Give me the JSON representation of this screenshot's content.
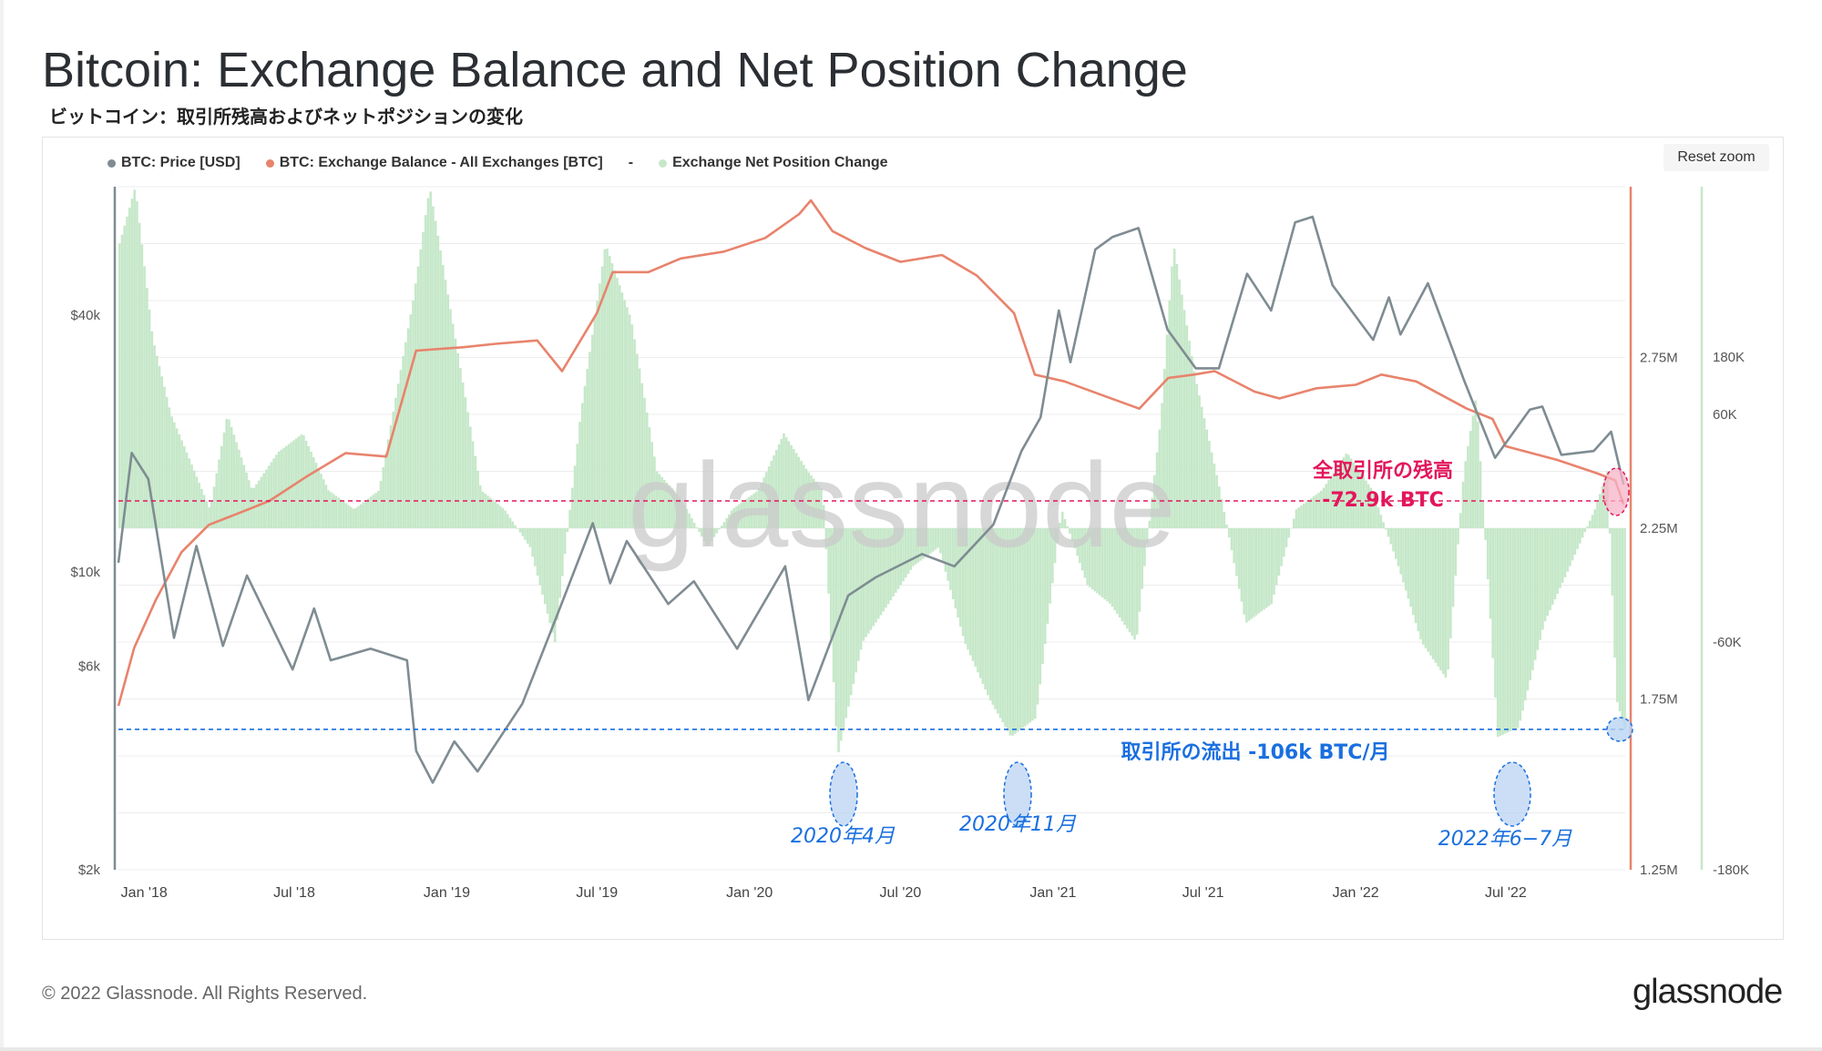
{
  "header": {
    "title": "Bitcoin: Exchange Balance and Net Position Change",
    "subtitle": "ビットコイン：取引所残高およびネットポジションの変化"
  },
  "toolbar": {
    "reset_zoom_label": "Reset zoom"
  },
  "legend": {
    "items": [
      {
        "label": "BTC: Price [USD]",
        "color": "#7f8c92"
      },
      {
        "label": "BTC: Exchange Balance - All Exchanges [BTC]",
        "color": "#e8836c"
      },
      {
        "label": "-",
        "color": ""
      },
      {
        "label": "Exchange Net Position Change",
        "color": "#c6e8c9"
      }
    ]
  },
  "watermark": "glassnode",
  "annotations": {
    "balance_title": "全取引所の残高",
    "balance_value": "-72.9k BTC",
    "outflow_label": "取引所の流出 -106k BTC/月",
    "event_1": "2020年4月",
    "event_2": "2020年11月",
    "event_3": "2022年6−7月"
  },
  "footer": {
    "copyright": "© 2022 Glassnode. All Rights Reserved.",
    "logo": "glassnode"
  },
  "colors": {
    "price": "#7f8c92",
    "balance": "#e8836c",
    "netpos": "#c6e8c9",
    "pink": "#e3165b",
    "blue": "#1a6fe0"
  },
  "chart_data": {
    "type": "line",
    "x_ticks": [
      "Jan '18",
      "Jul '18",
      "Jan '19",
      "Jul '19",
      "Jan '20",
      "Jul '20",
      "Jan '21",
      "Jul '21",
      "Jan '22",
      "Jul '22"
    ],
    "y_left_ticks": [
      "$40k",
      "$10k",
      "$6k",
      "$2k"
    ],
    "y_right1_ticks": [
      "2.75M",
      "2.25M",
      "1.75M",
      "1.25M"
    ],
    "y_right2_ticks": [
      "180K",
      "60K",
      "-60K",
      "-180K"
    ],
    "y_left_scale": "log",
    "y_left_range": [
      2000,
      80000
    ],
    "y_right1_range": [
      1250000,
      3250000
    ],
    "y_right2_range": [
      -180000,
      180000
    ],
    "series": [
      {
        "name": "BTC: Price [USD]",
        "axis": "left",
        "points": [
          [
            "2017-12-01",
            10500
          ],
          [
            "2017-12-17",
            19000
          ],
          [
            "2018-01-06",
            16500
          ],
          [
            "2018-02-06",
            7000
          ],
          [
            "2018-03-05",
            11500
          ],
          [
            "2018-04-06",
            6700
          ],
          [
            "2018-05-05",
            9800
          ],
          [
            "2018-06-29",
            5900
          ],
          [
            "2018-07-25",
            8200
          ],
          [
            "2018-08-14",
            6200
          ],
          [
            "2018-10-01",
            6600
          ],
          [
            "2018-11-14",
            6200
          ],
          [
            "2018-11-25",
            3800
          ],
          [
            "2018-12-15",
            3200
          ],
          [
            "2019-01-10",
            4000
          ],
          [
            "2019-02-07",
            3400
          ],
          [
            "2019-04-02",
            4900
          ],
          [
            "2019-05-14",
            7900
          ],
          [
            "2019-06-26",
            13000
          ],
          [
            "2019-07-17",
            9400
          ],
          [
            "2019-08-06",
            11800
          ],
          [
            "2019-09-25",
            8400
          ],
          [
            "2019-10-26",
            9500
          ],
          [
            "2019-12-17",
            6600
          ],
          [
            "2020-02-13",
            10300
          ],
          [
            "2020-03-12",
            5000
          ],
          [
            "2020-04-29",
            8800
          ],
          [
            "2020-06-01",
            9700
          ],
          [
            "2020-07-27",
            11000
          ],
          [
            "2020-09-04",
            10300
          ],
          [
            "2020-10-21",
            12900
          ],
          [
            "2020-11-24",
            19200
          ],
          [
            "2020-12-17",
            23000
          ],
          [
            "2021-01-08",
            41000
          ],
          [
            "2021-01-22",
            31000
          ],
          [
            "2021-02-21",
            57000
          ],
          [
            "2021-03-14",
            61000
          ],
          [
            "2021-04-14",
            64000
          ],
          [
            "2021-05-19",
            37000
          ],
          [
            "2021-06-22",
            30000
          ],
          [
            "2021-07-20",
            30000
          ],
          [
            "2021-08-23",
            50000
          ],
          [
            "2021-09-21",
            41000
          ],
          [
            "2021-10-20",
            66000
          ],
          [
            "2021-11-10",
            68000
          ],
          [
            "2021-12-04",
            47000
          ],
          [
            "2022-01-22",
            35000
          ],
          [
            "2022-02-10",
            44000
          ],
          [
            "2022-02-24",
            36000
          ],
          [
            "2022-03-29",
            47500
          ],
          [
            "2022-05-12",
            28000
          ],
          [
            "2022-06-18",
            18500
          ],
          [
            "2022-07-30",
            24000
          ],
          [
            "2022-08-14",
            24400
          ],
          [
            "2022-09-06",
            18800
          ],
          [
            "2022-10-15",
            19200
          ],
          [
            "2022-11-05",
            21300
          ],
          [
            "2022-11-20",
            16000
          ]
        ]
      },
      {
        "name": "BTC: Exchange Balance - All Exchanges [BTC]",
        "axis": "right1",
        "points": [
          [
            "2017-12-01",
            1730000
          ],
          [
            "2017-12-20",
            1900000
          ],
          [
            "2018-01-15",
            2040000
          ],
          [
            "2018-02-15",
            2180000
          ],
          [
            "2018-03-20",
            2260000
          ],
          [
            "2018-05-01",
            2300000
          ],
          [
            "2018-06-01",
            2330000
          ],
          [
            "2018-07-15",
            2400000
          ],
          [
            "2018-09-01",
            2470000
          ],
          [
            "2018-10-20",
            2460000
          ],
          [
            "2018-11-25",
            2770000
          ],
          [
            "2019-01-20",
            2780000
          ],
          [
            "2019-03-01",
            2790000
          ],
          [
            "2019-04-20",
            2800000
          ],
          [
            "2019-05-20",
            2710000
          ],
          [
            "2019-07-01",
            2880000
          ],
          [
            "2019-07-20",
            3000000
          ],
          [
            "2019-09-01",
            3000000
          ],
          [
            "2019-10-10",
            3040000
          ],
          [
            "2019-12-01",
            3060000
          ],
          [
            "2020-01-20",
            3100000
          ],
          [
            "2020-03-01",
            3170000
          ],
          [
            "2020-03-15",
            3210000
          ],
          [
            "2020-04-10",
            3120000
          ],
          [
            "2020-05-20",
            3070000
          ],
          [
            "2020-07-01",
            3030000
          ],
          [
            "2020-08-20",
            3050000
          ],
          [
            "2020-10-01",
            2990000
          ],
          [
            "2020-11-15",
            2880000
          ],
          [
            "2020-12-10",
            2700000
          ],
          [
            "2021-01-15",
            2680000
          ],
          [
            "2021-03-01",
            2640000
          ],
          [
            "2021-04-15",
            2600000
          ],
          [
            "2021-05-20",
            2690000
          ],
          [
            "2021-06-20",
            2700000
          ],
          [
            "2021-07-15",
            2710000
          ],
          [
            "2021-09-01",
            2650000
          ],
          [
            "2021-10-01",
            2630000
          ],
          [
            "2021-11-15",
            2660000
          ],
          [
            "2022-01-01",
            2670000
          ],
          [
            "2022-02-01",
            2700000
          ],
          [
            "2022-03-15",
            2680000
          ],
          [
            "2022-05-15",
            2600000
          ],
          [
            "2022-06-15",
            2570000
          ],
          [
            "2022-07-01",
            2490000
          ],
          [
            "2022-09-01",
            2450000
          ],
          [
            "2022-10-20",
            2410000
          ],
          [
            "2022-11-10",
            2390000
          ],
          [
            "2022-11-20",
            2320000
          ]
        ]
      },
      {
        "name": "Exchange Net Position Change",
        "axis": "right2",
        "type": "area",
        "points": [
          [
            "2017-12-01",
            150000
          ],
          [
            "2017-12-20",
            180000
          ],
          [
            "2018-01-10",
            100000
          ],
          [
            "2018-02-01",
            60000
          ],
          [
            "2018-02-20",
            40000
          ],
          [
            "2018-03-20",
            10000
          ],
          [
            "2018-04-10",
            60000
          ],
          [
            "2018-05-10",
            20000
          ],
          [
            "2018-06-10",
            40000
          ],
          [
            "2018-07-10",
            50000
          ],
          [
            "2018-08-10",
            20000
          ],
          [
            "2018-09-10",
            10000
          ],
          [
            "2018-10-10",
            20000
          ],
          [
            "2018-11-20",
            120000
          ],
          [
            "2018-12-10",
            180000
          ],
          [
            "2019-01-10",
            100000
          ],
          [
            "2019-02-10",
            20000
          ],
          [
            "2019-03-10",
            10000
          ],
          [
            "2019-04-10",
            -10000
          ],
          [
            "2019-05-10",
            -60000
          ],
          [
            "2019-06-10",
            60000
          ],
          [
            "2019-07-10",
            150000
          ],
          [
            "2019-08-10",
            110000
          ],
          [
            "2019-09-10",
            30000
          ],
          [
            "2019-10-10",
            15000
          ],
          [
            "2019-11-10",
            -10000
          ],
          [
            "2019-12-10",
            10000
          ],
          [
            "2020-01-10",
            20000
          ],
          [
            "2020-02-10",
            50000
          ],
          [
            "2020-03-10",
            30000
          ],
          [
            "2020-03-28",
            20000
          ],
          [
            "2020-04-15",
            -120000
          ],
          [
            "2020-05-15",
            -60000
          ],
          [
            "2020-06-15",
            -40000
          ],
          [
            "2020-07-15",
            -20000
          ],
          [
            "2020-08-15",
            -10000
          ],
          [
            "2020-09-15",
            -60000
          ],
          [
            "2020-10-15",
            -90000
          ],
          [
            "2020-11-10",
            -110000
          ],
          [
            "2020-12-10",
            -100000
          ],
          [
            "2021-01-10",
            10000
          ],
          [
            "2021-02-10",
            -30000
          ],
          [
            "2021-03-10",
            -40000
          ],
          [
            "2021-04-10",
            -60000
          ],
          [
            "2021-05-10",
            60000
          ],
          [
            "2021-05-25",
            150000
          ],
          [
            "2021-06-20",
            80000
          ],
          [
            "2021-07-20",
            20000
          ],
          [
            "2021-08-20",
            -50000
          ],
          [
            "2021-09-20",
            -40000
          ],
          [
            "2021-10-20",
            10000
          ],
          [
            "2021-11-20",
            20000
          ],
          [
            "2021-12-20",
            40000
          ],
          [
            "2022-01-20",
            20000
          ],
          [
            "2022-02-20",
            -20000
          ],
          [
            "2022-03-20",
            -60000
          ],
          [
            "2022-04-20",
            -80000
          ],
          [
            "2022-05-10",
            30000
          ],
          [
            "2022-05-25",
            70000
          ],
          [
            "2022-06-20",
            -110000
          ],
          [
            "2022-07-15",
            -105000
          ],
          [
            "2022-08-15",
            -50000
          ],
          [
            "2022-09-15",
            -20000
          ],
          [
            "2022-10-15",
            10000
          ],
          [
            "2022-10-30",
            30000
          ],
          [
            "2022-11-10",
            -90000
          ],
          [
            "2022-11-20",
            -106000
          ]
        ]
      }
    ],
    "reference_lines": [
      {
        "axis": "right1",
        "value": 2330000,
        "label": "全取引所の残高 -72.9k BTC"
      },
      {
        "axis": "right2",
        "value": -106000,
        "label": "取引所の流出 -106k BTC/月"
      }
    ],
    "highlight_dates": [
      {
        "date": "2020-04-15",
        "label": "2020年4月"
      },
      {
        "date": "2020-11-10",
        "label": "2020年11月"
      },
      {
        "date": "2022-06-30",
        "label": "2022年6−7月"
      }
    ],
    "grid": true,
    "legend_position": "top-left"
  }
}
